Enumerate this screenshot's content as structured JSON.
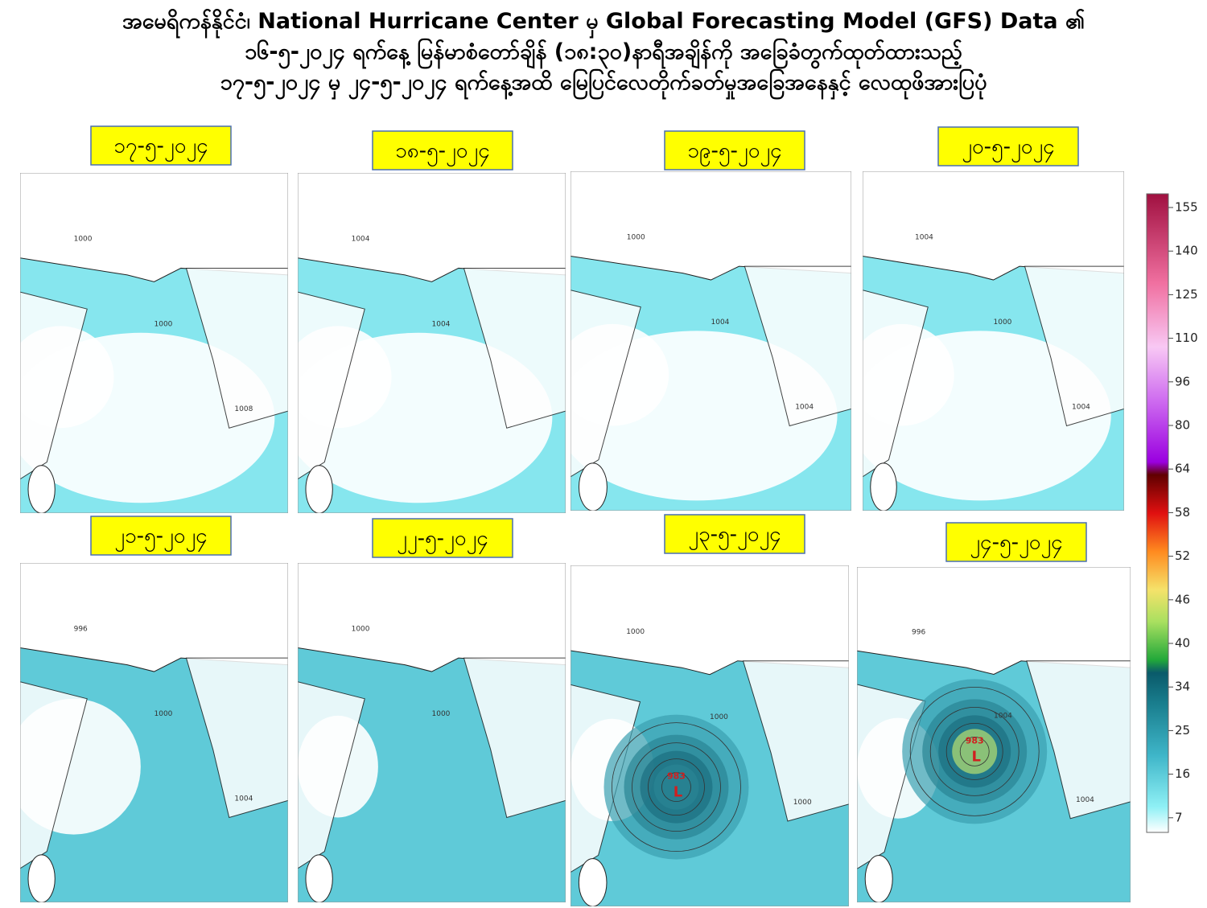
{
  "header": {
    "title_lines": [
      "အမေရိကန်နိုင်ငံ၊ National Hurricane Center မှ Global Forecasting Model (GFS) Data ၏",
      "၁၆-၅-၂၀၂၄ ရက်နေ့ မြန်မာစံတော်ချိန် (၁၈:၃၀)နာရီအချိန်ကို အခြေခံတွက်ထုတ်ထားသည့်",
      "၁၇-၅-၂၀၂၄ မှ ၂၄-၅-၂၀၂၄ ရက်နေ့အထိ မြေပြင်လေတိုက်ခတ်မှုအခြေအနေနှင့် လေထုဖိအားပြပုံ"
    ]
  },
  "panels": [
    {
      "date": "၁၇-၅-၂၀၂၄",
      "isobar_labels": [
        "1000",
        "1000",
        "1008"
      ]
    },
    {
      "date": "၁၈-၅-၂၀၂၄",
      "isobar_labels": [
        "1004",
        "1004"
      ]
    },
    {
      "date": "၁၉-၅-၂၀၂၄",
      "isobar_labels": [
        "1000",
        "1004",
        "1004"
      ]
    },
    {
      "date": "၂၀-၅-၂၀၂၄",
      "isobar_labels": [
        "1004",
        "1000",
        "1004"
      ]
    },
    {
      "date": "၂၁-၅-၂၀၂၄",
      "isobar_labels": [
        "996",
        "1000",
        "1004"
      ]
    },
    {
      "date": "၂၂-၅-၂၀၂၄",
      "isobar_labels": [
        "1000",
        "1000"
      ]
    },
    {
      "date": "၂၃-၅-၂၀၂၄",
      "isobar_labels": [
        "1000",
        "1000",
        "1000"
      ],
      "low_pressure": "983",
      "low_symbol": "L"
    },
    {
      "date": "၂၄-၅-၂၀၂၄",
      "isobar_labels": [
        "996",
        "1004",
        "1004"
      ],
      "low_pressure": "983",
      "low_symbol": "L"
    }
  ],
  "colorbar": {
    "ticks": [
      "155",
      "140",
      "125",
      "110",
      "96",
      "80",
      "64",
      "58",
      "52",
      "46",
      "40",
      "34",
      "25",
      "16",
      "7"
    ]
  }
}
